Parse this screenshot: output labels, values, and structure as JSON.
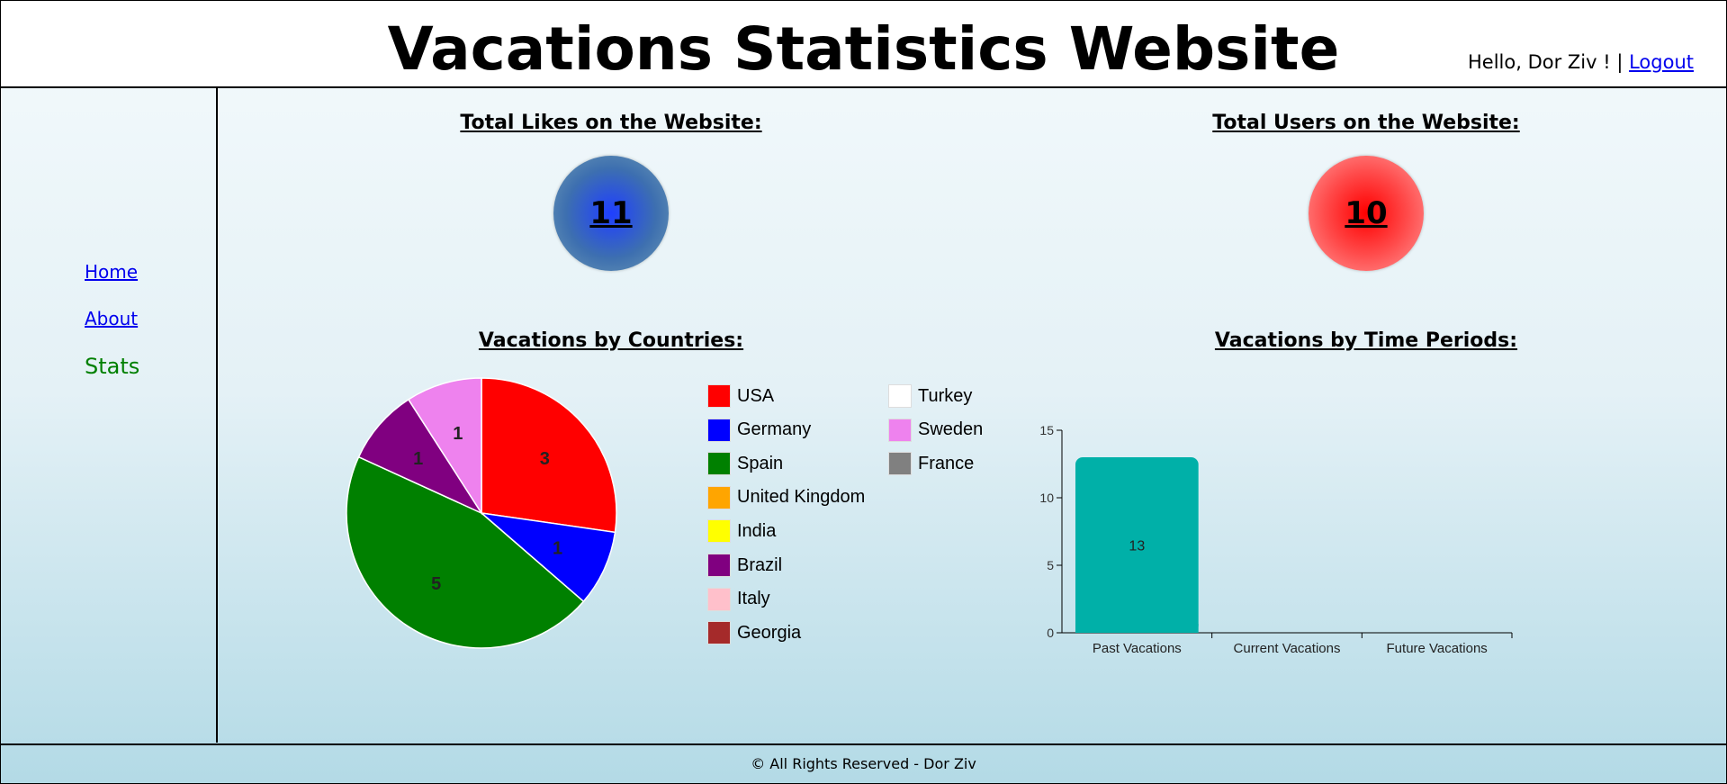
{
  "header": {
    "title": "Vacations Statistics Website",
    "greeting": "Hello, Dor Ziv ! |",
    "logout": "Logout"
  },
  "sidebar": {
    "items": [
      {
        "label": "Home"
      },
      {
        "label": "About"
      },
      {
        "label": "Stats"
      }
    ]
  },
  "stats": {
    "likes_title": "Total Likes on the Website:",
    "likes_value": "11",
    "users_title": "Total Users on the Website:",
    "users_value": "10",
    "likes_color": "#2a4fe0",
    "users_color": "#ff2a2a"
  },
  "footer": {
    "text": "© All Rights Reserved - Dor Ziv"
  },
  "chart_data": [
    {
      "type": "pie",
      "title": "Vacations by Countries:",
      "categories": [
        "USA",
        "Germany",
        "Spain",
        "United Kingdom",
        "India",
        "Brazil",
        "Italy",
        "Georgia",
        "Turkey",
        "Sweden",
        "France"
      ],
      "values": [
        3,
        1,
        5,
        0,
        0,
        1,
        0,
        0,
        0,
        1,
        0
      ],
      "colors": [
        "#ff0000",
        "#0000ff",
        "#008000",
        "#ffa500",
        "#ffff00",
        "#800080",
        "#ffc0cb",
        "#a52a2a",
        "#ffffff",
        "#ee82ee",
        "#808080"
      ],
      "legend": "right"
    },
    {
      "type": "bar",
      "title": "Vacations by Time Periods:",
      "categories": [
        "Past Vacations",
        "Current Vacations",
        "Future Vacations"
      ],
      "values": [
        13,
        0,
        0
      ],
      "ylim": [
        0,
        15
      ],
      "yticks": [
        0,
        5,
        10,
        15
      ],
      "color": "#00b0a8",
      "grid": false
    }
  ]
}
